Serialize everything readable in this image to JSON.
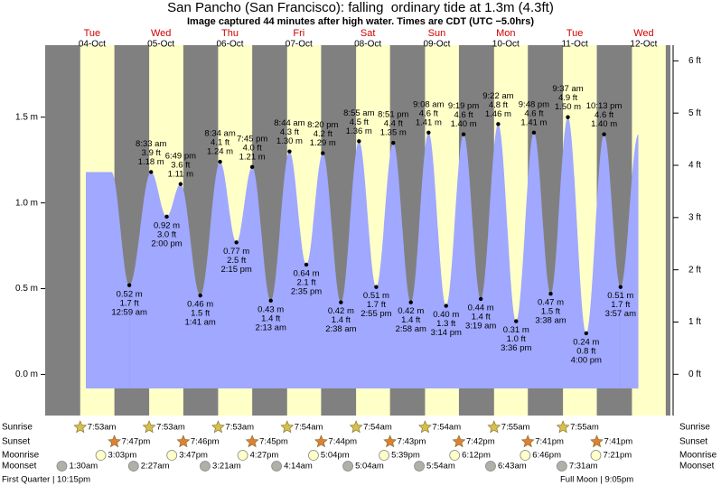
{
  "chart_data": {
    "type": "area",
    "title": "San Pancho (San Francisco): falling  ordinary tide at 1.3m (4.3ft)",
    "subtitle": "Image captured 44 minutes after high water. Times are CDT (UTC −5.0hrs)",
    "color": "#a0a8ff",
    "ylim": [
      -0.24,
      1.92
    ],
    "yticks": [
      {
        "value": 0,
        "label": "0.0 m"
      },
      {
        "value": 0.5,
        "label": "0.5 m"
      },
      {
        "value": 1,
        "label": "1.0 m"
      },
      {
        "value": 1.5,
        "label": "1.5 m"
      }
    ],
    "y2lim": [
      -0.79,
      6.3
    ],
    "y2ticks": [
      {
        "value": 0,
        "label": "0 ft"
      },
      {
        "value": 1,
        "label": "1 ft"
      },
      {
        "value": 2,
        "label": "2 ft"
      },
      {
        "value": 3,
        "label": "3 ft"
      },
      {
        "value": 4,
        "label": "4 ft"
      },
      {
        "value": 5,
        "label": "5 ft"
      },
      {
        "value": 6,
        "label": "6 ft"
      }
    ],
    "days": [
      {
        "name": "Tue",
        "date": "04-Oct"
      },
      {
        "name": "Wed",
        "date": "05-Oct"
      },
      {
        "name": "Thu",
        "date": "06-Oct"
      },
      {
        "name": "Fri",
        "date": "07-Oct"
      },
      {
        "name": "Sat",
        "date": "08-Oct"
      },
      {
        "name": "Sun",
        "date": "09-Oct"
      },
      {
        "name": "Mon",
        "date": "10-Oct"
      },
      {
        "name": "Tue",
        "date": "11-Oct"
      },
      {
        "name": "Wed",
        "date": "12-Oct"
      }
    ],
    "tides": {
      "times": [
        "12:59 am",
        "8:33 am",
        "2:00 pm",
        "6:49 pm",
        "1:41 am",
        "8:34 am",
        "2:15 pm",
        "7:45 pm",
        "2:13 am",
        "8:44 am",
        "2:35 pm",
        "8:20 pm",
        "2:38 am",
        "8:55 am",
        "2:55 pm",
        "8:51 pm",
        "2:58 am",
        "9:08 am",
        "3:14 pm",
        "9:19 pm",
        "3:19 am",
        "9:22 am",
        "3:36 pm",
        "9:48 pm",
        "3:38 am",
        "9:37 am",
        "4:00 pm",
        "10:13 pm",
        "3:57 am"
      ],
      "values": [
        0.52,
        1.18,
        0.92,
        1.11,
        0.46,
        1.24,
        0.77,
        1.21,
        0.43,
        1.3,
        0.64,
        1.29,
        0.42,
        1.36,
        0.51,
        1.35,
        0.42,
        1.41,
        0.4,
        1.4,
        0.44,
        1.46,
        0.31,
        1.41,
        0.47,
        1.5,
        0.24,
        1.4,
        0.51
      ],
      "value_labels": [
        "0.52 m",
        "1.18 m",
        "0.92 m",
        "1.11 m",
        "0.46 m",
        "1.24 m",
        "0.77 m",
        "1.21 m",
        "0.43 m",
        "1.30 m",
        "0.64 m",
        "1.29 m",
        "0.42 m",
        "1.36 m",
        "0.51 m",
        "1.35 m",
        "0.42 m",
        "1.41 m",
        "0.40 m",
        "1.40 m",
        "0.44 m",
        "1.46 m",
        "0.31 m",
        "1.41 m",
        "0.47 m",
        "1.50 m",
        "0.24 m",
        "1.40 m",
        "0.51 m"
      ],
      "feet_labels": [
        "1.7 ft",
        "3.9 ft",
        "3.0 ft",
        "3.6 ft",
        "1.5 ft",
        "4.1 ft",
        "2.5 ft",
        "4.0 ft",
        "1.4 ft",
        "4.3 ft",
        "2.1 ft",
        "4.2 ft",
        "1.4 ft",
        "4.5 ft",
        "1.7 ft",
        "4.4 ft",
        "1.4 ft",
        "4.6 ft",
        "1.3 ft",
        "4.6 ft",
        "1.4 ft",
        "4.8 ft",
        "1.0 ft",
        "4.6 ft",
        "1.5 ft",
        "4.9 ft",
        "0.8 ft",
        "4.6 ft",
        "1.7 ft"
      ]
    },
    "row_labels": [
      "Sunrise",
      "Sunset",
      "Moonrise",
      "Moonset"
    ],
    "sunrise": [
      "7:53am",
      "7:53am",
      "7:53am",
      "7:54am",
      "7:54am",
      "7:54am",
      "7:55am",
      "7:55am"
    ],
    "sunset": [
      "7:47pm",
      "7:46pm",
      "7:45pm",
      "7:44pm",
      "7:43pm",
      "7:42pm",
      "7:41pm",
      "7:41pm"
    ],
    "moonrise": [
      "3:03pm",
      "3:47pm",
      "4:27pm",
      "5:04pm",
      "5:39pm",
      "6:12pm",
      "6:46pm",
      "7:21pm"
    ],
    "moonset": [
      "1:30am",
      "2:27am",
      "3:21am",
      "4:14am",
      "5:04am",
      "5:54am",
      "6:43am",
      "7:31am"
    ],
    "moon_phases": [
      "First Quarter | 10:15pm",
      "Full Moon | 9:05pm"
    ]
  }
}
